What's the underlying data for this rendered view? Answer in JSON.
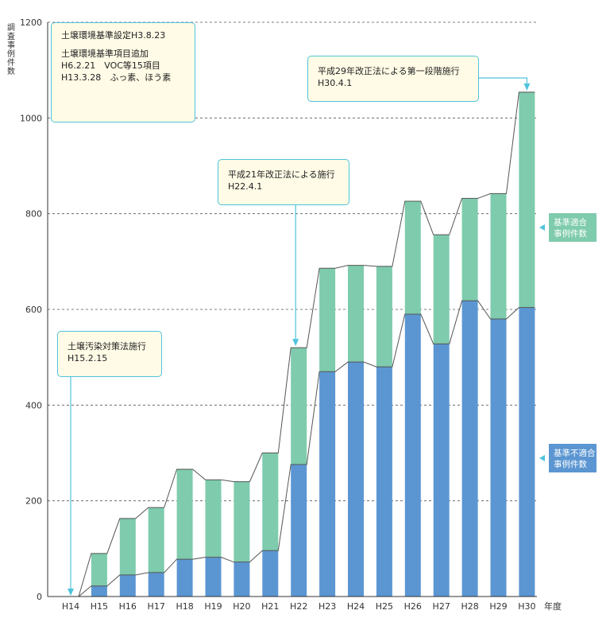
{
  "chart_data": {
    "type": "bar",
    "stacked": true,
    "categories": [
      "H14",
      "H15",
      "H16",
      "H17",
      "H18",
      "H19",
      "H20",
      "H21",
      "H22",
      "H23",
      "H24",
      "H25",
      "H26",
      "H27",
      "H28",
      "H29",
      "H30"
    ],
    "series": [
      {
        "name": "基準不適合事例件数",
        "color": "#5b96d2",
        "values": [
          0,
          22,
          45,
          50,
          78,
          82,
          72,
          96,
          276,
          470,
          490,
          480,
          590,
          528,
          618,
          580,
          604
        ]
      },
      {
        "name": "基準適合事例件数",
        "color": "#7ecbad",
        "values": [
          0,
          68,
          118,
          136,
          188,
          162,
          168,
          204,
          244,
          216,
          202,
          210,
          236,
          228,
          214,
          262,
          450
        ]
      }
    ],
    "ylabel": "調査事例件数",
    "xlabel": "年度",
    "ylim": [
      0,
      1200
    ],
    "yticks": [
      0,
      200,
      400,
      600,
      800,
      1000,
      1200
    ],
    "grid": "horizontal-dashed",
    "legend": "right"
  },
  "annotations": {
    "standards": {
      "lines": [
        "土壌環境基準設定H3.8.23",
        "",
        "土壌環境基準項目追加",
        "H6.2.21　VOC等15項目",
        "H13.3.28　ふっ素、ほう素"
      ]
    },
    "law_enforcement": {
      "lines": [
        "土壌汚染対策法施行",
        "H15.2.15"
      ]
    },
    "amendment_2009": {
      "lines": [
        "平成21年改正法による施行",
        "H22.4.1"
      ]
    },
    "amendment_2017": {
      "lines": [
        "平成29年改正法による第一段階施行",
        "H30.4.1"
      ]
    }
  },
  "legend_labels": {
    "compliant": [
      "基準適合",
      "事例件数"
    ],
    "noncompliant": [
      "基準不適合",
      "事例件数"
    ]
  }
}
